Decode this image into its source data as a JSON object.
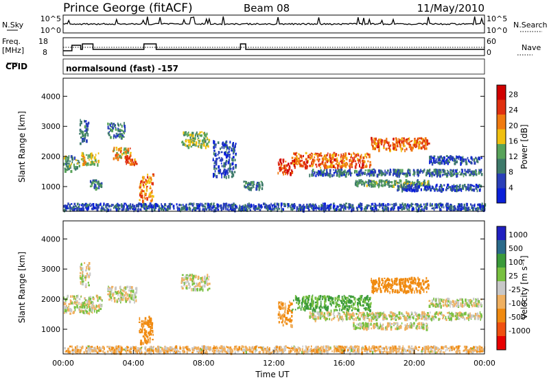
{
  "header": {
    "station": "Prince George (fitACF)",
    "beam": "Beam 08",
    "date": "11/May/2010"
  },
  "noise_panel": {
    "left_label": "N.Sky",
    "right_label": "N.Search",
    "left_ticks": [
      "10^5",
      "10^0"
    ],
    "right_ticks": [
      "10^5",
      "10^0"
    ]
  },
  "freq_panel": {
    "left_label_line1": "Freq.",
    "left_label_line2": "[MHz]",
    "right_label": "Nave",
    "left_ticks": [
      "18",
      "8"
    ],
    "right_ticks": [
      "60",
      "0"
    ]
  },
  "cpid": {
    "label": "CPID",
    "text": "normalsound (fast) -157"
  },
  "colors": {
    "power": [
      "#0a1fd8",
      "#2a3fb8",
      "#3e7a6a",
      "#58a35a",
      "#f0c010",
      "#f07a10",
      "#e03010",
      "#d00000"
    ],
    "velocity_neg": [
      "#e80000",
      "#f05010",
      "#f08a10",
      "#f0b060"
    ],
    "velocity_mid": "#c8c8c8",
    "velocity_pos": [
      "#78c040",
      "#3a9a3a",
      "#2a6a8a",
      "#2020c0"
    ]
  },
  "chart_data": [
    {
      "type": "heatmap",
      "panel": "power",
      "ylabel": "Slant Range [km]",
      "yticks": [
        "1000",
        "2000",
        "3000",
        "4000"
      ],
      "ylim": [
        180,
        4600
      ],
      "xlim": [
        0,
        24
      ],
      "colorbar_label": "Power [dB]",
      "colorbar_ticks": [
        "4",
        "8",
        "12",
        "16",
        "20",
        "24",
        "28"
      ],
      "colorbar_range": [
        0,
        30
      ],
      "regions": [
        {
          "t0": 0.0,
          "t1": 0.9,
          "r0": 1500,
          "r1": 2000,
          "v": 12
        },
        {
          "t0": 0.9,
          "t1": 1.4,
          "r0": 2400,
          "r1": 3200,
          "v": 8
        },
        {
          "t0": 1.0,
          "t1": 2.0,
          "r0": 1700,
          "r1": 2100,
          "v": 16
        },
        {
          "t0": 1.5,
          "t1": 2.2,
          "r0": 900,
          "r1": 1200,
          "v": 10
        },
        {
          "t0": 2.5,
          "t1": 3.5,
          "r0": 2600,
          "r1": 3100,
          "v": 8
        },
        {
          "t0": 2.8,
          "t1": 3.8,
          "r0": 1900,
          "r1": 2300,
          "v": 18
        },
        {
          "t0": 3.5,
          "t1": 4.2,
          "r0": 1700,
          "r1": 2000,
          "v": 22
        },
        {
          "t0": 4.3,
          "t1": 5.1,
          "r0": 500,
          "r1": 1400,
          "v": 20
        },
        {
          "t0": 6.7,
          "t1": 8.3,
          "r0": 2300,
          "r1": 2800,
          "v": 14
        },
        {
          "t0": 8.5,
          "t1": 9.8,
          "r0": 1300,
          "r1": 2500,
          "v": 6
        },
        {
          "t0": 10.2,
          "t1": 11.3,
          "r0": 900,
          "r1": 1150,
          "v": 10
        },
        {
          "t0": 12.2,
          "t1": 13.0,
          "r0": 1400,
          "r1": 1900,
          "v": 24
        },
        {
          "t0": 13.0,
          "t1": 17.5,
          "r0": 1600,
          "r1": 2100,
          "v": 22
        },
        {
          "t0": 14.0,
          "t1": 23.8,
          "r0": 1350,
          "r1": 1550,
          "v": 8
        },
        {
          "t0": 16.5,
          "t1": 20.8,
          "r0": 1000,
          "r1": 1200,
          "v": 12
        },
        {
          "t0": 17.5,
          "t1": 20.8,
          "r0": 2200,
          "r1": 2600,
          "v": 22
        },
        {
          "t0": 20.8,
          "t1": 23.8,
          "r0": 1750,
          "r1": 2000,
          "v": 6
        },
        {
          "t0": 19.0,
          "t1": 23.8,
          "r0": 850,
          "r1": 1050,
          "v": 6
        },
        {
          "t0": 0.0,
          "t1": 24.0,
          "r0": 200,
          "r1": 420,
          "v": 6
        }
      ]
    },
    {
      "type": "heatmap",
      "panel": "velocity",
      "ylabel": "Slant Range [km]",
      "yticks": [
        "1000",
        "2000",
        "3000",
        "4000"
      ],
      "ylim": [
        180,
        4600
      ],
      "xlim": [
        0,
        24
      ],
      "xlabel": "Time UT",
      "xticks": [
        "00:00",
        "04:00",
        "08:00",
        "12:00",
        "16:00",
        "20:00",
        "00:00"
      ],
      "colorbar_label": "Velocity [m s⁻¹]",
      "colorbar_ticks": [
        "1000",
        "500",
        "100",
        "25",
        "-25",
        "-100",
        "-500",
        "-1000"
      ],
      "regions": [
        {
          "t0": 0.0,
          "t1": 2.2,
          "r0": 1500,
          "r1": 2100,
          "v": 0
        },
        {
          "t0": 0.9,
          "t1": 1.5,
          "r0": 2400,
          "r1": 3200,
          "v": 0
        },
        {
          "t0": 2.5,
          "t1": 4.2,
          "r0": 1900,
          "r1": 2400,
          "v": 0
        },
        {
          "t0": 4.3,
          "t1": 5.1,
          "r0": 500,
          "r1": 1400,
          "v": -200
        },
        {
          "t0": 6.7,
          "t1": 8.3,
          "r0": 2300,
          "r1": 2800,
          "v": 0
        },
        {
          "t0": 12.2,
          "t1": 13.0,
          "r0": 1100,
          "r1": 1900,
          "v": -120
        },
        {
          "t0": 13.0,
          "t1": 17.5,
          "r0": 1600,
          "r1": 2100,
          "v": 120
        },
        {
          "t0": 17.5,
          "t1": 20.8,
          "r0": 2200,
          "r1": 2700,
          "v": -300
        },
        {
          "t0": 14.0,
          "t1": 23.8,
          "r0": 1300,
          "r1": 1550,
          "v": 0
        },
        {
          "t0": 16.5,
          "t1": 20.8,
          "r0": 1000,
          "r1": 1200,
          "v": 0
        },
        {
          "t0": 20.8,
          "t1": 23.8,
          "r0": 1750,
          "r1": 2000,
          "v": 0
        },
        {
          "t0": 0.0,
          "t1": 24.0,
          "r0": 200,
          "r1": 420,
          "v": -60
        }
      ]
    }
  ]
}
